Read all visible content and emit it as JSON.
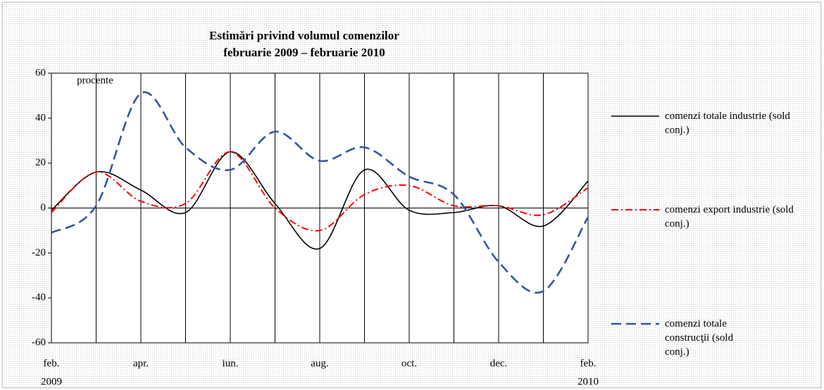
{
  "chart_data": {
    "type": "line",
    "title": "Estimări privind volumul comenzilor",
    "subtitle": "februarie 2009 – februarie 2010",
    "y_label": "procente",
    "categories": [
      "feb.",
      null,
      "apr.",
      null,
      "iun.",
      null,
      "aug.",
      null,
      "oct.",
      null,
      "dec.",
      null,
      "feb."
    ],
    "year_labels": [
      "2009",
      "2010"
    ],
    "ylim": [
      -60,
      60
    ],
    "yticks": [
      -60,
      -40,
      -20,
      0,
      20,
      40,
      60
    ],
    "grid": true,
    "legend": "right",
    "series": [
      {
        "name": "comenzi totale industrie (sold conj.)",
        "color": "#000000",
        "dash": "solid",
        "values": [
          -1,
          16,
          8,
          -2,
          25,
          2,
          -18,
          17,
          -1,
          -2,
          1,
          -8,
          12
        ]
      },
      {
        "name": "comenzi export industrie (sold conj.)",
        "color": "#ff0000",
        "dash": "dashdot",
        "values": [
          -2,
          16,
          3,
          2,
          25,
          0,
          -10,
          6,
          10,
          1,
          1,
          -3,
          9
        ]
      },
      {
        "name": "comenzi totale construcţii (sold conj.)",
        "color": "#3355a5",
        "dash": "dashed",
        "values": [
          -11,
          1,
          51,
          27,
          17,
          34,
          21,
          27,
          14,
          6,
          -24,
          -37,
          -4
        ]
      }
    ]
  }
}
